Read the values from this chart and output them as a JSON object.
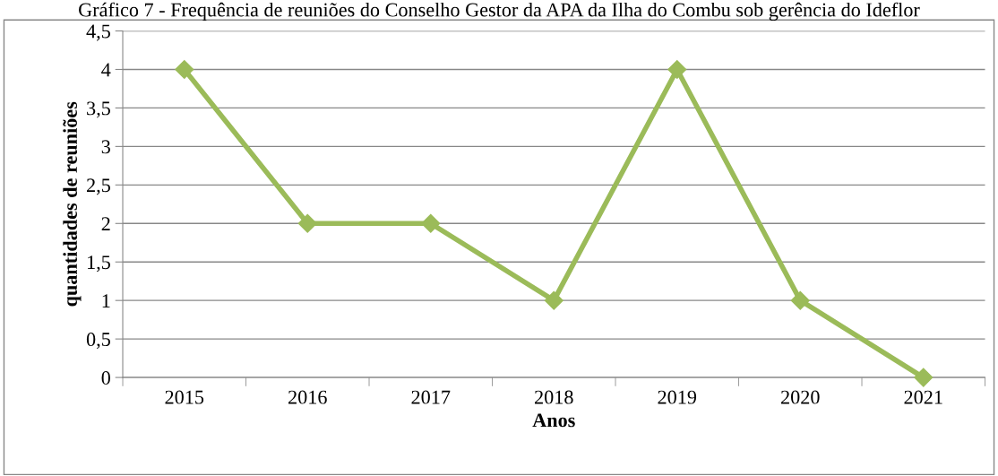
{
  "chart_data": {
    "type": "line",
    "title": "Gráfico 7 - Frequência de reuniões do Conselho Gestor da APA da Ilha do Combu sob gerência do Ideflor",
    "xlabel": "Anos",
    "ylabel": "quantidades de reuniões",
    "categories": [
      "2015",
      "2016",
      "2017",
      "2018",
      "2019",
      "2020",
      "2021"
    ],
    "series": [
      {
        "color": "#9bbb59",
        "values": [
          4,
          2,
          2,
          1,
          4,
          1,
          0
        ]
      }
    ],
    "ylim": [
      0,
      4.5
    ],
    "yticks": [
      {
        "value": 0,
        "label": "0"
      },
      {
        "value": 0.5,
        "label": "0,5"
      },
      {
        "value": 1,
        "label": "1"
      },
      {
        "value": 1.5,
        "label": "1,5"
      },
      {
        "value": 2,
        "label": "2"
      },
      {
        "value": 2.5,
        "label": "2,5"
      },
      {
        "value": 3,
        "label": "3"
      },
      {
        "value": 3.5,
        "label": "3,5"
      },
      {
        "value": 4,
        "label": "4"
      },
      {
        "value": 4.5,
        "label": "4,5"
      }
    ],
    "grid": "y",
    "marker": "diamond",
    "line_style": "solid",
    "legend": false
  }
}
